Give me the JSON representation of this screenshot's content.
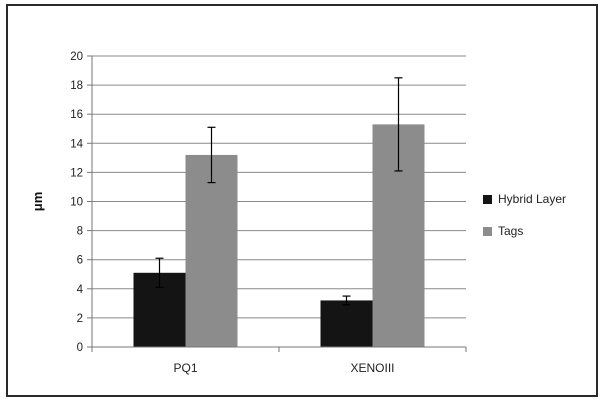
{
  "chart_data": {
    "type": "bar",
    "categories": [
      "PQ1",
      "XENOIII"
    ],
    "series": [
      {
        "name": "Hybrid Layer",
        "values": [
          5.1,
          3.2
        ],
        "errors": [
          1.0,
          0.3
        ],
        "color": "#141414"
      },
      {
        "name": "Tags",
        "values": [
          13.2,
          15.3
        ],
        "errors": [
          1.9,
          3.2
        ],
        "color": "#8c8c8c"
      }
    ],
    "ylabel": "μm",
    "ylim": [
      0,
      20
    ],
    "yticks": [
      0,
      2,
      4,
      6,
      8,
      10,
      12,
      14,
      16,
      18,
      20
    ],
    "grid": true,
    "legend_position": "right"
  }
}
